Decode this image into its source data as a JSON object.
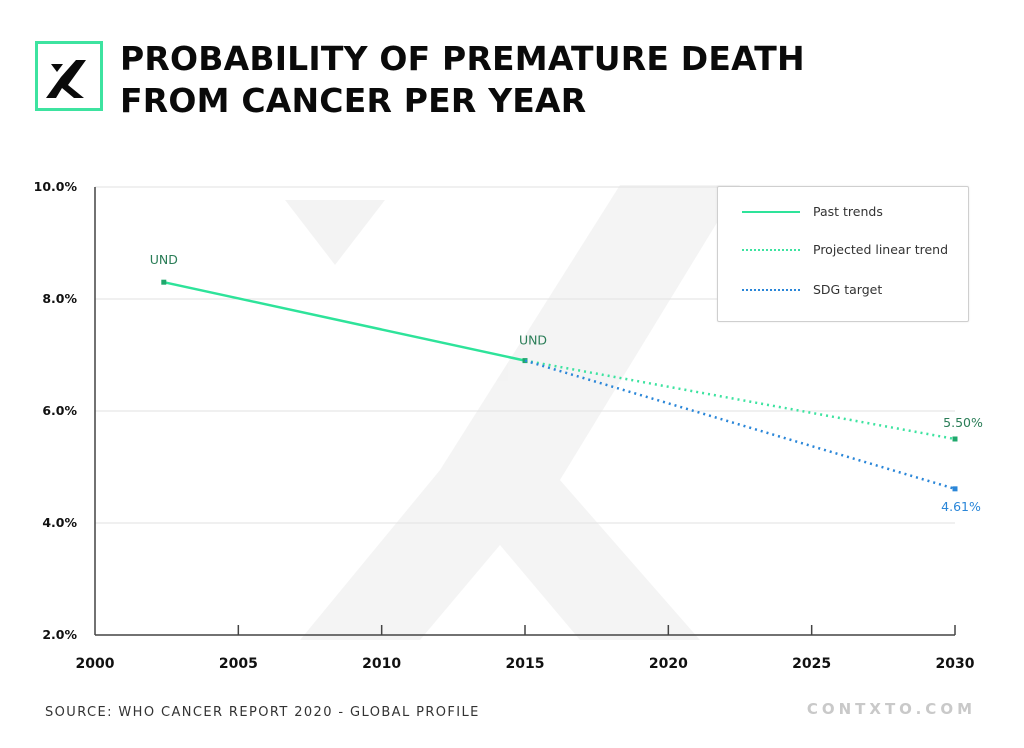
{
  "header": {
    "logo_icon": "contxto-x-logo-icon",
    "title_line1": "PROBABILITY OF PREMATURE DEATH",
    "title_line2": "FROM CANCER PER YEAR"
  },
  "footer": {
    "source": "SOURCE: WHO CANCER REPORT 2020 - GLOBAL PROFILE",
    "brand": "CONTXTO.COM"
  },
  "colors": {
    "accent": "#3de3a0",
    "past": "#2ee39a",
    "projected": "#3de3a0",
    "sdg": "#2a86d8",
    "label_green": "#2a7d57",
    "label_blue": "#2a86d8"
  },
  "chart_data": {
    "type": "line",
    "title": "PROBABILITY OF PREMATURE DEATH FROM CANCER PER YEAR",
    "xlabel": "",
    "ylabel": "",
    "xlim": [
      2000,
      2030
    ],
    "ylim": [
      2.0,
      10.0
    ],
    "x_ticks": [
      2000,
      2005,
      2010,
      2015,
      2020,
      2025,
      2030
    ],
    "x_tick_labels": [
      "2000",
      "2005",
      "2010",
      "2015",
      "2020",
      "2025",
      "2030"
    ],
    "y_ticks": [
      2,
      4,
      6,
      8,
      10
    ],
    "y_tick_labels": [
      "2.0%",
      "4.0%",
      "6.0%",
      "8.0%",
      "10.0%"
    ],
    "grid": "horizontal",
    "legend_position": "top-right",
    "series": [
      {
        "name": "Past trends",
        "style": "solid",
        "color": "#2ee39a",
        "points": [
          [
            2002.4,
            8.3
          ],
          [
            2015,
            6.9
          ]
        ]
      },
      {
        "name": "Projected linear trend",
        "style": "dotted",
        "color": "#3de3a0",
        "points": [
          [
            2015,
            6.9
          ],
          [
            2030,
            5.5
          ]
        ]
      },
      {
        "name": "SDG target",
        "style": "dotted",
        "color": "#2a86d8",
        "points": [
          [
            2015,
            6.9
          ],
          [
            2030,
            4.61
          ]
        ]
      }
    ],
    "annotations": [
      {
        "text": "UND",
        "x": 2002.4,
        "y": 8.3,
        "color": "#2a7d57"
      },
      {
        "text": "UND",
        "x": 2015,
        "y": 6.9,
        "color": "#2a7d57"
      },
      {
        "text": "5.50%",
        "x": 2030,
        "y": 5.5,
        "color": "#2a7d57"
      },
      {
        "text": "4.61%",
        "x": 2030,
        "y": 4.61,
        "color": "#2a86d8"
      }
    ]
  }
}
